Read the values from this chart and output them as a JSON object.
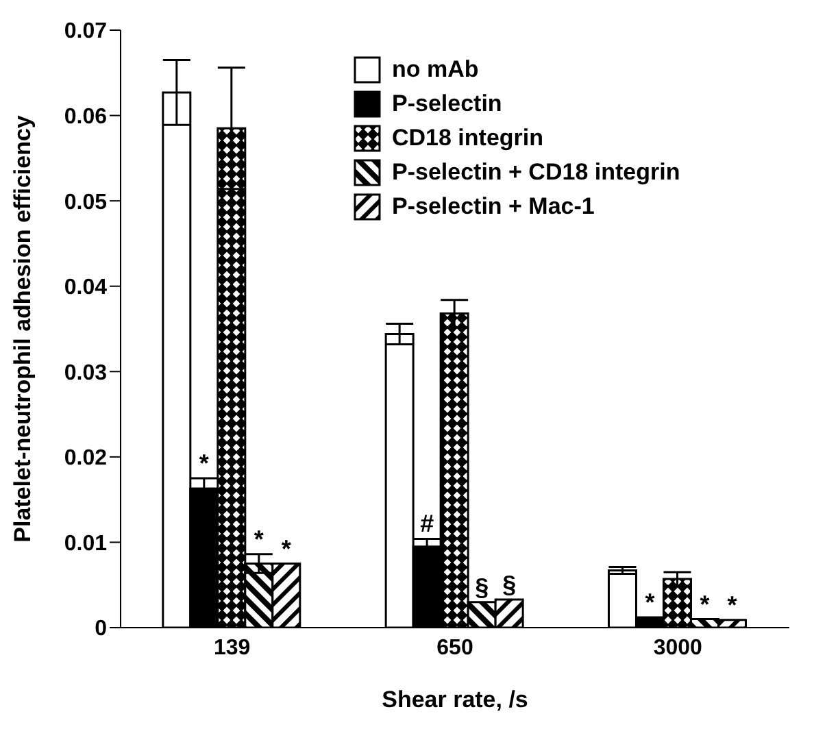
{
  "chart_data": {
    "type": "bar",
    "xlabel": "Shear rate, /s",
    "ylabel": "Platelet-neutrophil adhesion efficiency",
    "categories": [
      "139",
      "650",
      "3000"
    ],
    "series": [
      {
        "name": "no mAb",
        "color": "#ffffff",
        "values": [
          0.0627,
          0.0344,
          0.0067
        ],
        "errors": [
          0.0038,
          0.0012,
          0.0004
        ]
      },
      {
        "name": "P-selectin",
        "color": "#000000",
        "values": [
          0.0163,
          0.0095,
          0.0012
        ],
        "errors": [
          0.0012,
          0.0009,
          null
        ],
        "value_labels": [
          "*",
          "#",
          "*"
        ]
      },
      {
        "name": "CD18 integrin",
        "color": "#000000",
        "values": [
          0.0585,
          0.0368,
          0.0057
        ],
        "errors": [
          0.0071,
          0.0016,
          0.0008
        ]
      },
      {
        "name": "P-selectin + CD18 integrin",
        "color": "#000000",
        "values": [
          0.0075,
          0.003,
          0.001
        ],
        "errors": [
          0.0011,
          null,
          null
        ],
        "value_labels": [
          "*",
          "§",
          "*"
        ]
      },
      {
        "name": "P-selectin + Mac-1",
        "color": "#000000",
        "values": [
          0.0075,
          0.0033,
          0.0009
        ],
        "errors": [
          null,
          null,
          null
        ],
        "value_labels": [
          "*",
          "§",
          "*"
        ]
      }
    ],
    "ylim": [
      0,
      0.07
    ],
    "yticks": [
      0,
      0.01,
      0.02,
      0.03,
      0.04,
      0.05,
      0.06,
      0.07
    ],
    "legend": "top right",
    "grid": false
  }
}
